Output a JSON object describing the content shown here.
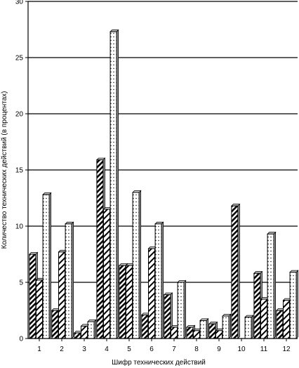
{
  "chart_data": {
    "type": "bar",
    "categories": [
      "1",
      "2",
      "3",
      "4",
      "5",
      "6",
      "7",
      "8",
      "9",
      "10",
      "11",
      "12"
    ],
    "series": [
      {
        "values": [
          7.5,
          2.5,
          0.5,
          15.9,
          6.5,
          2.1,
          3.9,
          1.0,
          1.3,
          11.8,
          5.8,
          2.5
        ]
      },
      {
        "values": [
          5.2,
          7.7,
          1.1,
          11.5,
          6.5,
          8.0,
          1.0,
          0.7,
          0.7,
          0.0,
          3.5,
          3.4
        ]
      },
      {
        "values": [
          12.8,
          10.2,
          1.5,
          27.3,
          13.0,
          10.2,
          5.0,
          1.6,
          2.0,
          1.9,
          9.3,
          5.9
        ]
      }
    ],
    "xlabel": "Шифр технических действий",
    "ylabel": "Количество технических действий (в процентах)",
    "ylim": [
      0,
      30
    ],
    "yticks": [
      0,
      5,
      10,
      15,
      20,
      25,
      30
    ],
    "grid": true,
    "colors": {
      "bar_stroke": "#000000",
      "bar_fill": "#ffffff",
      "bar_top": "#cfcfcf",
      "grid": "#000000"
    },
    "patterns": [
      "dense-diagonal-hatch",
      "light-diagonal-hatch",
      "dotted"
    ]
  }
}
